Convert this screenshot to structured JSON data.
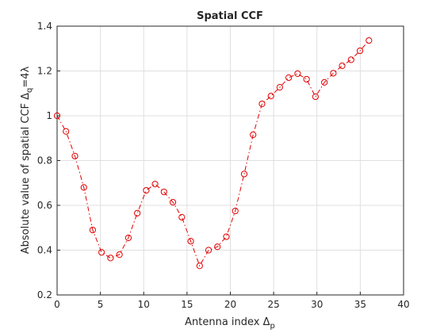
{
  "chart_data": {
    "type": "line",
    "title": "Spatial CCF",
    "xlabel": {
      "text": "Antenna index Δ",
      "sub": "p"
    },
    "ylabel": {
      "text": "Absolute value of spatial CCF Δ",
      "sub": "q",
      "after": "=4λ"
    },
    "x": [
      0,
      1.03,
      2.06,
      3.09,
      4.11,
      5.14,
      6.17,
      7.2,
      8.23,
      9.26,
      10.29,
      11.31,
      12.34,
      13.37,
      14.4,
      15.43,
      16.46,
      17.49,
      18.51,
      19.54,
      20.57,
      21.6,
      22.63,
      23.66,
      24.69,
      25.71,
      26.74,
      27.77,
      28.8,
      29.83,
      30.86,
      31.89,
      32.91,
      33.94,
      34.97,
      36
    ],
    "series": [
      {
        "color": "#e00000",
        "values": [
          1.0,
          0.93,
          0.82,
          0.68,
          0.49,
          0.39,
          0.365,
          0.38,
          0.455,
          0.565,
          0.667,
          0.695,
          0.66,
          0.614,
          0.547,
          0.44,
          0.33,
          0.4,
          0.415,
          0.46,
          0.575,
          0.74,
          0.915,
          1.053,
          1.088,
          1.127,
          1.17,
          1.188,
          1.163,
          1.085,
          1.149,
          1.19,
          1.223,
          1.25,
          1.29,
          1.336
        ]
      }
    ],
    "xlim": [
      0,
      40
    ],
    "xticks": [
      0,
      5,
      10,
      15,
      20,
      25,
      30,
      35,
      40
    ],
    "ylim": [
      0.2,
      1.4
    ],
    "yticks": [
      0.2,
      0.4,
      0.6,
      0.8,
      1,
      1.2,
      1.4
    ],
    "grid": true
  }
}
